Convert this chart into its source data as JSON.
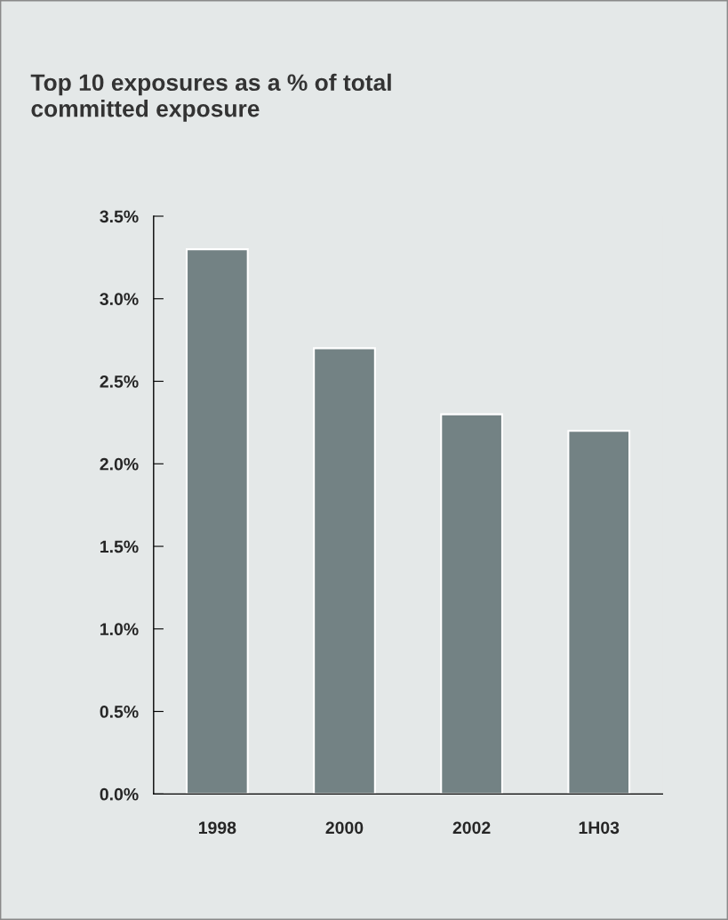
{
  "chart_data": {
    "type": "bar",
    "title": "Top 10 exposures as a % of total\ncommitted exposure",
    "categories": [
      "1998",
      "2000",
      "2002",
      "1H03"
    ],
    "values": [
      3.3,
      2.7,
      2.3,
      2.2
    ],
    "color": "#738284",
    "ylim": [
      0,
      3.5
    ],
    "yticks": [
      {
        "value": 0,
        "label": "0.0%"
      },
      {
        "value": 0.5,
        "label": "0.5%"
      },
      {
        "value": 1.0,
        "label": "1.0%"
      },
      {
        "value": 1.5,
        "label": "1.5%"
      },
      {
        "value": 2.0,
        "label": "2.0%"
      },
      {
        "value": 2.5,
        "label": "2.5%"
      },
      {
        "value": 3.0,
        "label": "3.0%"
      },
      {
        "value": 3.5,
        "label": "3.5%"
      }
    ],
    "grid": false,
    "legend": false
  }
}
